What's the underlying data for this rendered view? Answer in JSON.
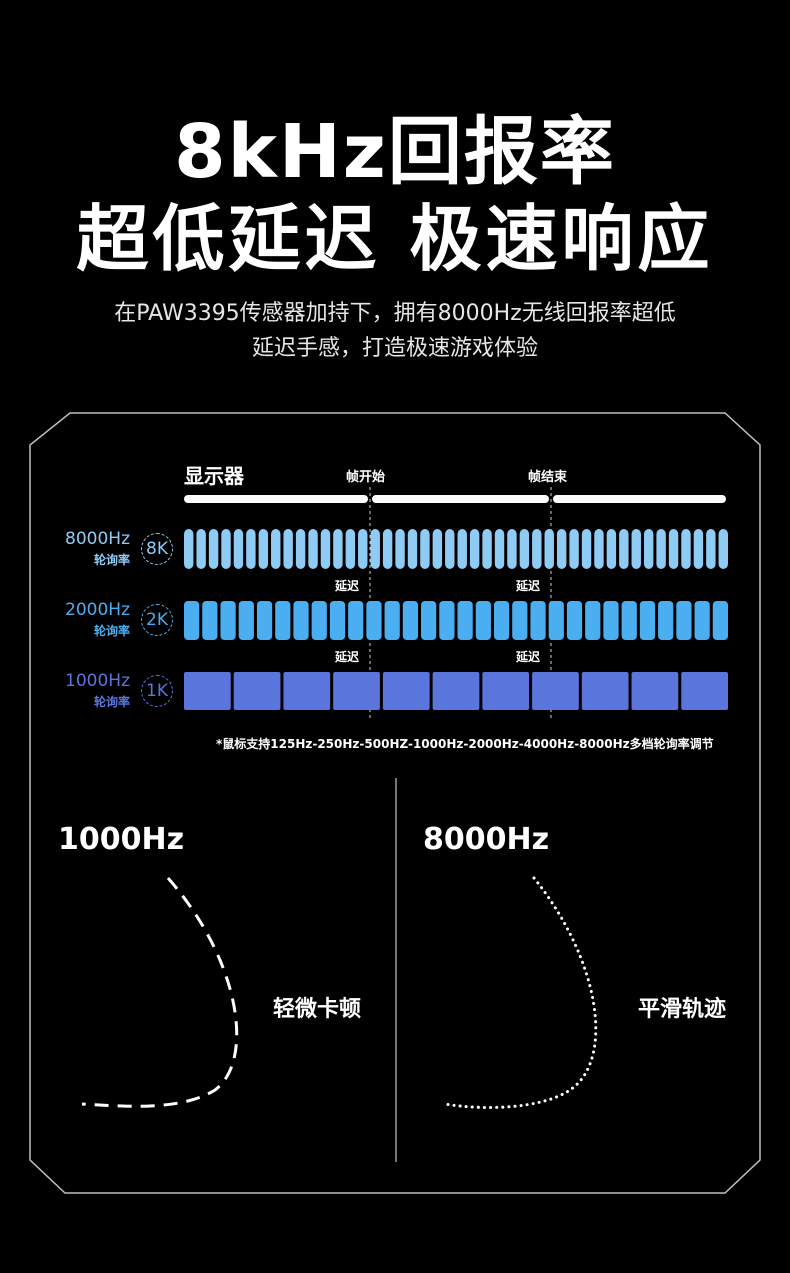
{
  "headline": {
    "line1": "8kHz回报率",
    "line2": "超低延迟 极速响应"
  },
  "intro": {
    "line1": "在PAW3395传感器加持下，拥有8000Hz无线回报率超低",
    "line2": "延迟手感，打造极速游戏体验"
  },
  "diagram": {
    "display_label": "显示器",
    "frame_start": "帧开始",
    "frame_end": "帧结束",
    "rows": [
      {
        "rate": "8000Hz",
        "rate_cn": "轮询率",
        "badge": "8K",
        "color": "#8ecbf5",
        "bar_count": 44,
        "delay_label": "延迟"
      },
      {
        "rate": "2000Hz",
        "rate_cn": "轮询率",
        "badge": "2K",
        "color": "#4aaef0",
        "bar_count": 30,
        "delay_label": "延迟"
      },
      {
        "rate": "1000Hz",
        "rate_cn": "轮询率",
        "badge": "1K",
        "color": "#5a76dc",
        "bar_count": 11,
        "delay_label": ""
      }
    ],
    "delay_labels": [
      "延迟",
      "延迟",
      "延迟",
      "延迟"
    ],
    "footnote": "*鼠标支持125Hz-250Hz-500HZ-1000Hz-2000Hz-4000Hz-8000Hz多档轮询率调节"
  },
  "compare": {
    "left": {
      "rate": "1000Hz",
      "desc": "轻微卡顿"
    },
    "right": {
      "rate": "8000Hz",
      "desc": "平滑轨迹"
    }
  },
  "colors": {
    "background": "#000000",
    "row_8k": "#8ecbf5",
    "row_2k": "#4aaef0",
    "row_1k": "#5a76dc"
  }
}
